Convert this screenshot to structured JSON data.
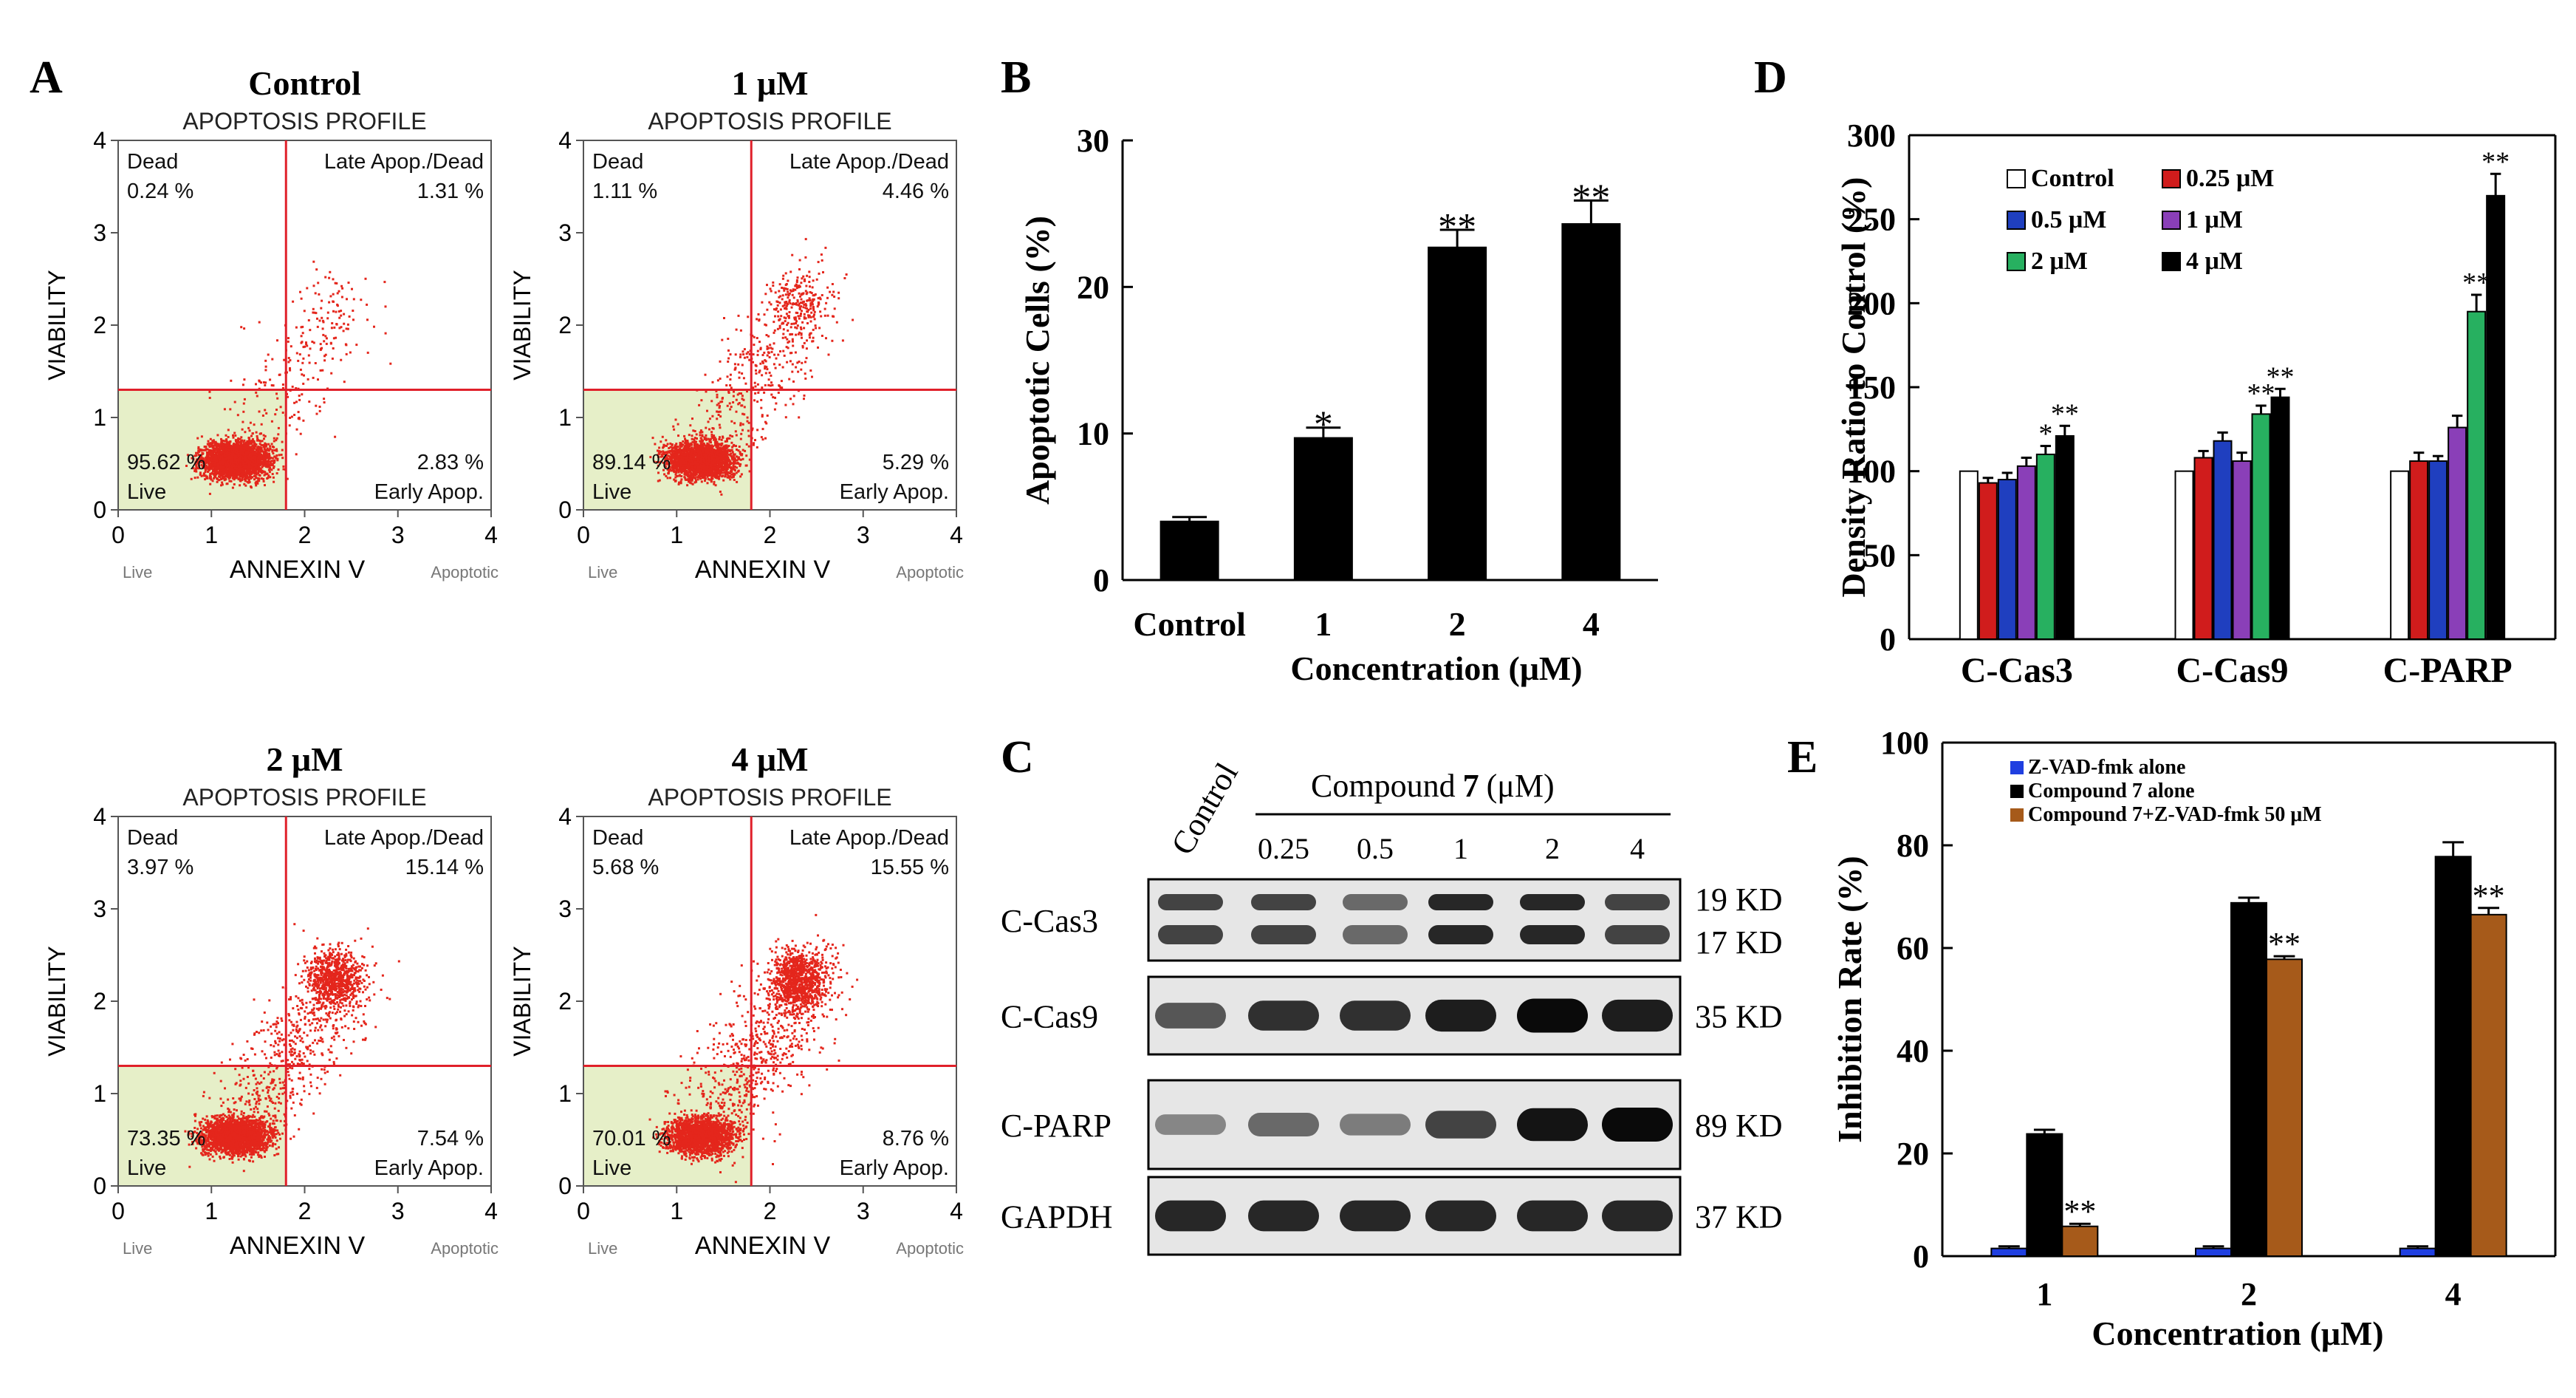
{
  "figure_labels": {
    "a": "A",
    "b": "B",
    "c": "C",
    "d": "D",
    "e": "E"
  },
  "chart_data": [
    {
      "id": "A",
      "type": "scatter",
      "panels": [
        {
          "title": "Control",
          "subtitle": "APOPTOSIS PROFILE",
          "dead": "0.24 %",
          "late": "1.31 %",
          "live": "95.62 %",
          "early": "2.83 %",
          "density": 0
        },
        {
          "title": "1 μM",
          "subtitle": "APOPTOSIS PROFILE",
          "dead": "1.11 %",
          "late": "4.46 %",
          "live": "89.14 %",
          "early": "5.29 %",
          "density": 1
        },
        {
          "title": "2 μM",
          "subtitle": "APOPTOSIS PROFILE",
          "dead": "3.97 %",
          "late": "15.14 %",
          "live": "73.35 %",
          "early": "7.54 %",
          "density": 2
        },
        {
          "title": "4 μM",
          "subtitle": "APOPTOSIS PROFILE",
          "dead": "5.68 %",
          "late": "15.55 %",
          "live": "70.01 %",
          "early": "8.76 %",
          "density": 3
        }
      ],
      "quadrant_labels": {
        "dead": "Dead",
        "late": "Late Apop./Dead",
        "live": "Live",
        "early": "Early Apop."
      },
      "xlabel": "ANNEXIN V",
      "ylabel": "VIABILITY",
      "x_left": "Live",
      "x_right": "Apoptotic",
      "xticks": [
        "0",
        "1",
        "2",
        "3",
        "4"
      ],
      "yticks": [
        "0",
        "1",
        "2",
        "3",
        "4"
      ],
      "xlim": [
        0,
        4
      ],
      "ylim": [
        0,
        4
      ],
      "x_gate": 1.8,
      "y_gate": 1.3
    },
    {
      "id": "B",
      "type": "bar",
      "categories": [
        "Control",
        "1",
        "2",
        "4"
      ],
      "values": [
        4.0,
        9.7,
        22.7,
        24.3
      ],
      "errors": [
        0.3,
        0.7,
        1.2,
        1.6
      ],
      "significance": [
        "",
        "*",
        "**",
        "**"
      ],
      "xlabel": "Concentration (μM)",
      "ylabel": "Apoptotic Cells (%)",
      "ylim": [
        0,
        30
      ],
      "yticks": [
        "0",
        "10",
        "20",
        "30"
      ]
    },
    {
      "id": "D",
      "type": "bar",
      "categories": [
        "C-Cas3",
        "C-Cas9",
        "C-PARP"
      ],
      "series": [
        {
          "name": "Control",
          "color": "#ffffff",
          "values": [
            100,
            100,
            100
          ],
          "errors": [
            0,
            0,
            0
          ],
          "sig": [
            "",
            "",
            ""
          ]
        },
        {
          "name": "0.25 μM",
          "color": "#d01c1c",
          "values": [
            93,
            108,
            106
          ],
          "errors": [
            3,
            4,
            5
          ],
          "sig": [
            "",
            "",
            ""
          ]
        },
        {
          "name": "0.5 μM",
          "color": "#1f3fbf",
          "values": [
            95,
            118,
            106
          ],
          "errors": [
            4,
            5,
            3
          ],
          "sig": [
            "",
            "",
            ""
          ]
        },
        {
          "name": "1 μM",
          "color": "#8a3fb8",
          "values": [
            103,
            106,
            126
          ],
          "errors": [
            5,
            5,
            7
          ],
          "sig": [
            "",
            "",
            ""
          ]
        },
        {
          "name": "2 μM",
          "color": "#27b060",
          "values": [
            110,
            134,
            195
          ],
          "errors": [
            5,
            5,
            10
          ],
          "sig": [
            "*",
            "**",
            "**"
          ]
        },
        {
          "name": "4 μM",
          "color": "#000000",
          "values": [
            121,
            144,
            264
          ],
          "errors": [
            6,
            5,
            13
          ],
          "sig": [
            "**",
            "**",
            "**"
          ]
        }
      ],
      "ylabel": "Density Ratio to Control (%)",
      "ylim": [
        0,
        300
      ],
      "yticks": [
        "0",
        "50",
        "100",
        "150",
        "200",
        "250",
        "300"
      ]
    },
    {
      "id": "E",
      "type": "bar",
      "categories": [
        "1",
        "2",
        "4"
      ],
      "series": [
        {
          "name": "Z-VAD-fmk alone",
          "color": "#1f3fe0",
          "values": [
            1.5,
            1.5,
            1.5
          ],
          "errors": [
            0.4,
            0.4,
            0.4
          ],
          "sig": [
            "",
            "",
            ""
          ]
        },
        {
          "name": "Compound 7 alone",
          "color": "#000000",
          "values": [
            23.8,
            68.8,
            77.8
          ],
          "errors": [
            0.8,
            1.0,
            2.8
          ],
          "sig": [
            "",
            "",
            ""
          ]
        },
        {
          "name": "Compound 7+Z-VAD-fmk 50 μM",
          "color": "#a65a1a",
          "values": [
            5.8,
            57.8,
            66.5
          ],
          "errors": [
            0.5,
            0.6,
            1.3
          ],
          "sig": [
            "**",
            "**",
            "**"
          ]
        }
      ],
      "xlabel": "Concentration (μM)",
      "ylabel": "Inhibition Rate (%)",
      "ylim": [
        0,
        100
      ],
      "yticks": [
        "0",
        "20",
        "40",
        "60",
        "80",
        "100"
      ]
    }
  ],
  "western": {
    "header_control": "Control",
    "header_compound": "Compound",
    "header_number": "7",
    "header_unit": "(μM)",
    "lanes": [
      "0.25",
      "0.5",
      "1",
      "2",
      "4"
    ],
    "rows": [
      {
        "label": "C-Cas3",
        "sizes": [
          "19 KD",
          "17 KD"
        ],
        "intensity": [
          0.7,
          0.7,
          0.5,
          0.85,
          0.85,
          0.7
        ]
      },
      {
        "label": "C-Cas9",
        "sizes": [
          "35 KD"
        ],
        "intensity": [
          0.6,
          0.8,
          0.8,
          0.9,
          1.0,
          0.9
        ]
      },
      {
        "label": "C-PARP",
        "sizes": [
          "89 KD"
        ],
        "intensity": [
          0.35,
          0.5,
          0.4,
          0.7,
          0.95,
          1.0
        ]
      },
      {
        "label": "GAPDH",
        "sizes": [
          "37 KD"
        ],
        "intensity": [
          0.85,
          0.85,
          0.85,
          0.85,
          0.85,
          0.85
        ]
      }
    ]
  }
}
